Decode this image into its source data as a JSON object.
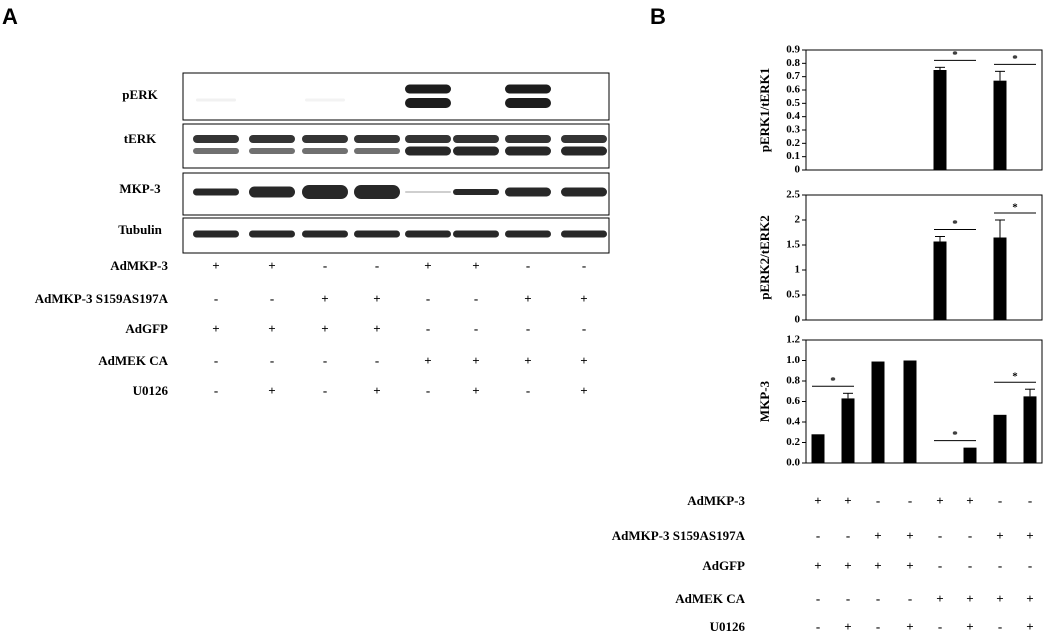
{
  "panel_a": {
    "label": "A",
    "blot_labels": [
      "pERK",
      "tERK",
      "MKP-3",
      "Tubulin"
    ]
  },
  "panel_b": {
    "label": "B"
  },
  "conditions": [
    {
      "label": "AdMKP-3",
      "signs": [
        "+",
        "+",
        "-",
        "-",
        "+",
        "+",
        "-",
        "-"
      ]
    },
    {
      "label": "AdMKP-3 S159AS197A",
      "signs": [
        "-",
        "-",
        "+",
        "+",
        "-",
        "-",
        "+",
        "+"
      ]
    },
    {
      "label": "AdGFP",
      "signs": [
        "+",
        "+",
        "+",
        "+",
        "-",
        "-",
        "-",
        "-"
      ]
    },
    {
      "label": "AdMEK CA",
      "signs": [
        "-",
        "-",
        "-",
        "-",
        "+",
        "+",
        "+",
        "+"
      ]
    },
    {
      "label": "U0126",
      "signs": [
        "-",
        "+",
        "-",
        "+",
        "-",
        "+",
        "-",
        "+"
      ]
    }
  ],
  "chart_data": [
    {
      "type": "bar",
      "ylabel": "pERK1/tERK1",
      "color": "#000000",
      "values": [
        null,
        null,
        null,
        null,
        0.75,
        null,
        0.67,
        null
      ],
      "errors": [
        null,
        null,
        null,
        null,
        0.02,
        null,
        0.07,
        null
      ],
      "ylim": [
        0,
        0.9
      ],
      "yticks": [
        0,
        0.1,
        0.2,
        0.3,
        0.4,
        0.5,
        0.6,
        0.7,
        0.8,
        0.9
      ],
      "annotations": [
        {
          "text": "*",
          "between": [
            4,
            5
          ]
        },
        {
          "text": "*",
          "between": [
            6,
            7
          ]
        }
      ]
    },
    {
      "type": "bar",
      "ylabel": "pERK2/tERK2",
      "color": "#000000",
      "values": [
        null,
        null,
        null,
        null,
        1.57,
        null,
        1.65,
        null
      ],
      "errors": [
        null,
        null,
        null,
        null,
        0.1,
        null,
        0.35,
        null
      ],
      "ylim": [
        0,
        2.5
      ],
      "yticks": [
        0,
        0.5,
        1,
        1.5,
        2,
        2.5
      ],
      "annotations": [
        {
          "text": "*",
          "between": [
            4,
            5
          ]
        },
        {
          "text": "*",
          "between": [
            6,
            7
          ]
        }
      ]
    },
    {
      "type": "bar",
      "ylabel": "MKP-3",
      "color": "#000000",
      "values": [
        0.28,
        0.63,
        0.99,
        1.0,
        0,
        0.15,
        0.47,
        0.65
      ],
      "errors": [
        null,
        0.05,
        null,
        null,
        null,
        null,
        null,
        0.07
      ],
      "ylim": [
        0,
        1.2
      ],
      "yticks": [
        {
          "value": 0,
          "label": "0.0"
        },
        0.2,
        0.4,
        0.6,
        0.8,
        {
          "value": 1,
          "label": "1.0"
        },
        1.2
      ],
      "annotations": [
        {
          "text": "*",
          "between": [
            0,
            1
          ]
        },
        {
          "text": "*",
          "between": [
            4,
            5
          ]
        },
        {
          "text": "*",
          "between": [
            6,
            7
          ]
        }
      ]
    }
  ]
}
